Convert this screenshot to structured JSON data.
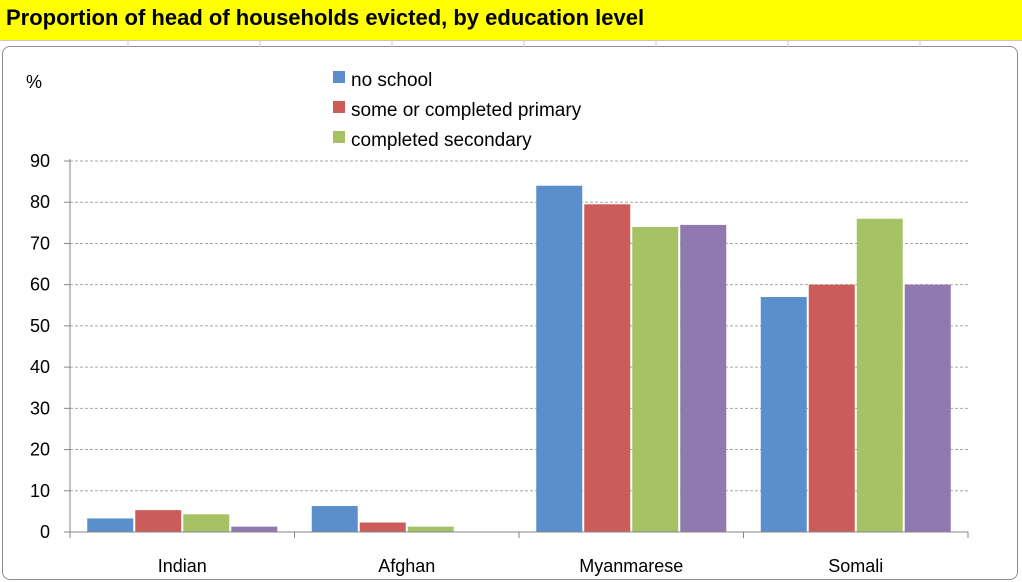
{
  "page": {
    "title": "Proportion of head of households evicted, by education level"
  },
  "chart_data": {
    "type": "bar",
    "title": "Proportion of head of households evicted, by education level",
    "ylabel": "%",
    "xlabel": "",
    "ylim": [
      0,
      90
    ],
    "yticks": [
      0,
      10,
      20,
      30,
      40,
      50,
      60,
      70,
      80,
      90
    ],
    "grid": true,
    "legend_position": "top-center",
    "categories": [
      "Indian",
      "Afghan",
      "Myanmarese",
      "Somali"
    ],
    "series": [
      {
        "name": "no school",
        "color": "#5b8fcb",
        "values": [
          3.3,
          6.3,
          84,
          57
        ]
      },
      {
        "name": "some or completed primary",
        "color": "#cc5c5a",
        "values": [
          5.3,
          2.3,
          79.5,
          60
        ]
      },
      {
        "name": "completed secondary",
        "color": "#a5c364",
        "values": [
          4.3,
          1.3,
          74,
          76
        ]
      },
      {
        "color": "#8f79b0",
        "values": [
          1.3,
          0,
          74.5,
          60
        ]
      }
    ]
  }
}
